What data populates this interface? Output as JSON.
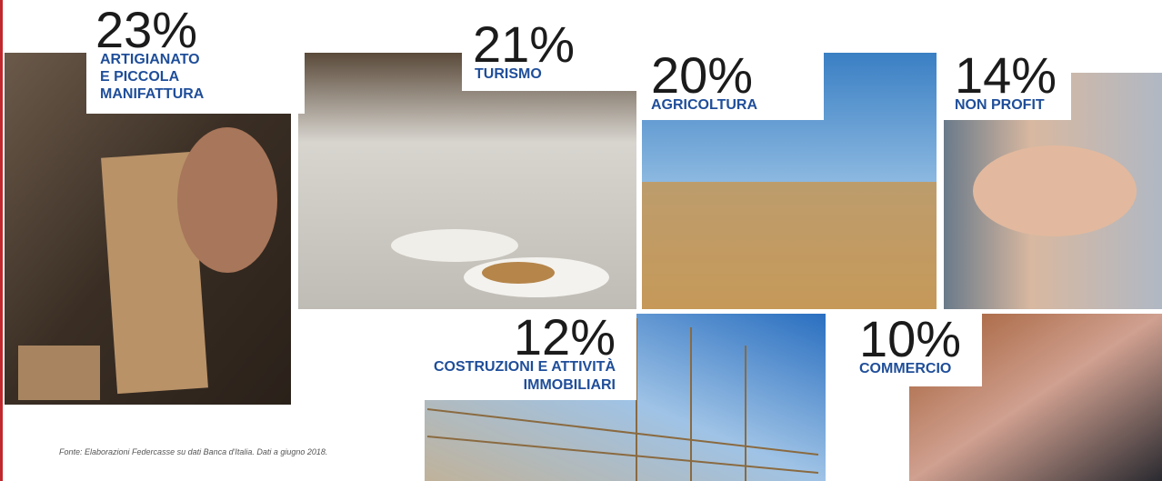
{
  "tiles": [
    {
      "percent": "23%",
      "label": [
        "ARTIGIANATO",
        "E PICCOLA",
        "MANIFATTURA"
      ]
    },
    {
      "percent": "21%",
      "label": [
        "TURISMO"
      ]
    },
    {
      "percent": "20%",
      "label": [
        "AGRICOLTURA"
      ]
    },
    {
      "percent": "14%",
      "label": [
        "NON PROFIT"
      ]
    },
    {
      "percent": "12%",
      "label": [
        "COSTRUZIONI E ATTIVITÀ",
        "IMMOBILIARI"
      ]
    },
    {
      "percent": "10%",
      "label": [
        "COMMERCIO"
      ]
    }
  ],
  "source": "Fonte: Elaborazioni Federcasse su dati Banca d'Italia. Dati a giugno 2018."
}
